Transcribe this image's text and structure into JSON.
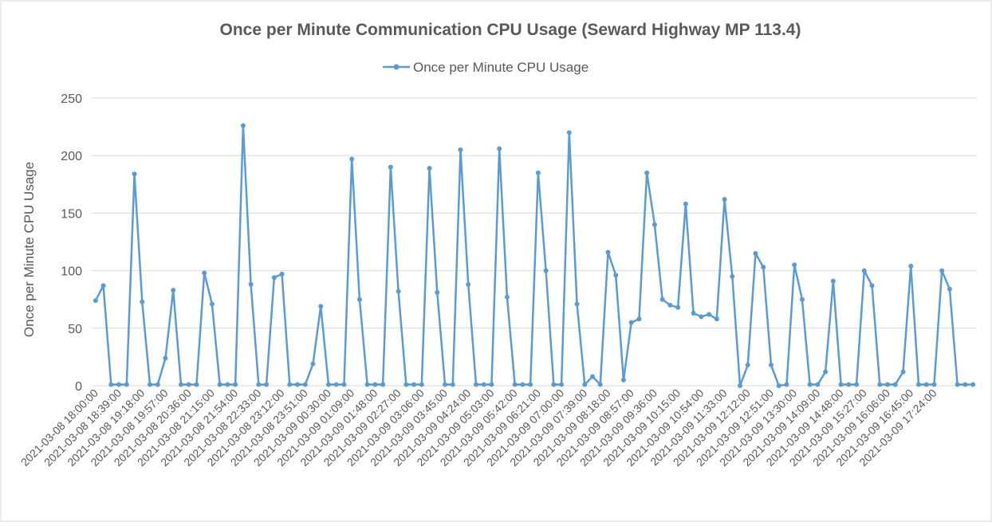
{
  "chart_data": {
    "type": "line",
    "title": "Once per Minute Communication CPU Usage (Seward Highway MP 113.4)",
    "y_label": "Once per Minute CPU Usage",
    "categories": [
      "2021-03-08 18:00:00",
      null,
      null,
      "2021-03-08 18:39:00",
      null,
      null,
      "2021-03-08 19:18:00",
      null,
      null,
      "2021-03-08 19:57:00",
      null,
      null,
      "2021-03-08 20:36:00",
      null,
      null,
      "2021-03-08 21:15:00",
      null,
      null,
      "2021-03-08 21:54:00",
      null,
      null,
      "2021-03-08 22:33:00",
      null,
      null,
      "2021-03-08 23:12:00",
      null,
      null,
      "2021-03-08 23:51:00",
      null,
      null,
      "2021-03-09 00:30:00",
      null,
      null,
      "2021-03-09 01:09:00",
      null,
      null,
      "2021-03-09 01:48:00",
      null,
      null,
      "2021-03-09 02:27:00",
      null,
      null,
      "2021-03-09 03:06:00",
      null,
      null,
      "2021-03-09 03:45:00",
      null,
      null,
      "2021-03-09 04:24:00",
      null,
      null,
      "2021-03-09 05:03:00",
      null,
      null,
      "2021-03-09 05:42:00",
      null,
      null,
      "2021-03-09 06:21:00",
      null,
      null,
      "2021-03-09 07:00:00",
      null,
      null,
      "2021-03-09 07:39:00",
      null,
      null,
      "2021-03-09 08:18:00",
      null,
      null,
      "2021-03-09 08:57:00",
      null,
      null,
      "2021-03-09 09:36:00",
      null,
      null,
      "2021-03-09 10:15:00",
      null,
      null,
      "2021-03-09 10:54:00",
      null,
      null,
      "2021-03-09 11:33:00",
      null,
      null,
      "2021-03-09 12:12:00",
      null,
      null,
      "2021-03-09 12:51:00",
      null,
      null,
      "2021-03-09 13:30:00",
      null,
      null,
      "2021-03-09 14:09:00",
      null,
      null,
      "2021-03-09 14:48:00",
      null,
      null,
      "2021-03-09 15:27:00",
      null,
      null,
      "2021-03-09 16:06:00",
      null,
      null,
      "2021-03-09 16:45:00",
      null,
      null,
      "2021-03-09 17:24:00",
      null,
      null,
      null,
      null,
      null
    ],
    "series": [
      {
        "name": "Once per Minute CPU Usage",
        "color": "#5b9bd5",
        "values": [
          74,
          87,
          1,
          1,
          1,
          184,
          73,
          1,
          1,
          24,
          83,
          1,
          1,
          1,
          98,
          71,
          1,
          1,
          1,
          226,
          88,
          1,
          1,
          94,
          97,
          1,
          1,
          1,
          19,
          69,
          1,
          1,
          1,
          197,
          75,
          1,
          1,
          1,
          190,
          82,
          1,
          1,
          1,
          189,
          81,
          1,
          1,
          205,
          88,
          1,
          1,
          1,
          206,
          77,
          1,
          1,
          1,
          185,
          100,
          1,
          1,
          220,
          71,
          1,
          8,
          1,
          116,
          96,
          5,
          55,
          58,
          185,
          140,
          75,
          70,
          68,
          158,
          63,
          60,
          62,
          58,
          162,
          95,
          0,
          18,
          115,
          103,
          18,
          0,
          1,
          105,
          75,
          1,
          1,
          12,
          91,
          1,
          1,
          1,
          100,
          87,
          1,
          1,
          1,
          12,
          104,
          1,
          1,
          1,
          100,
          84,
          1,
          1,
          1
        ]
      }
    ],
    "ylim": [
      0,
      250
    ],
    "yticks": [
      0,
      50,
      100,
      150,
      200,
      250
    ],
    "grid": true,
    "legend": "top"
  }
}
